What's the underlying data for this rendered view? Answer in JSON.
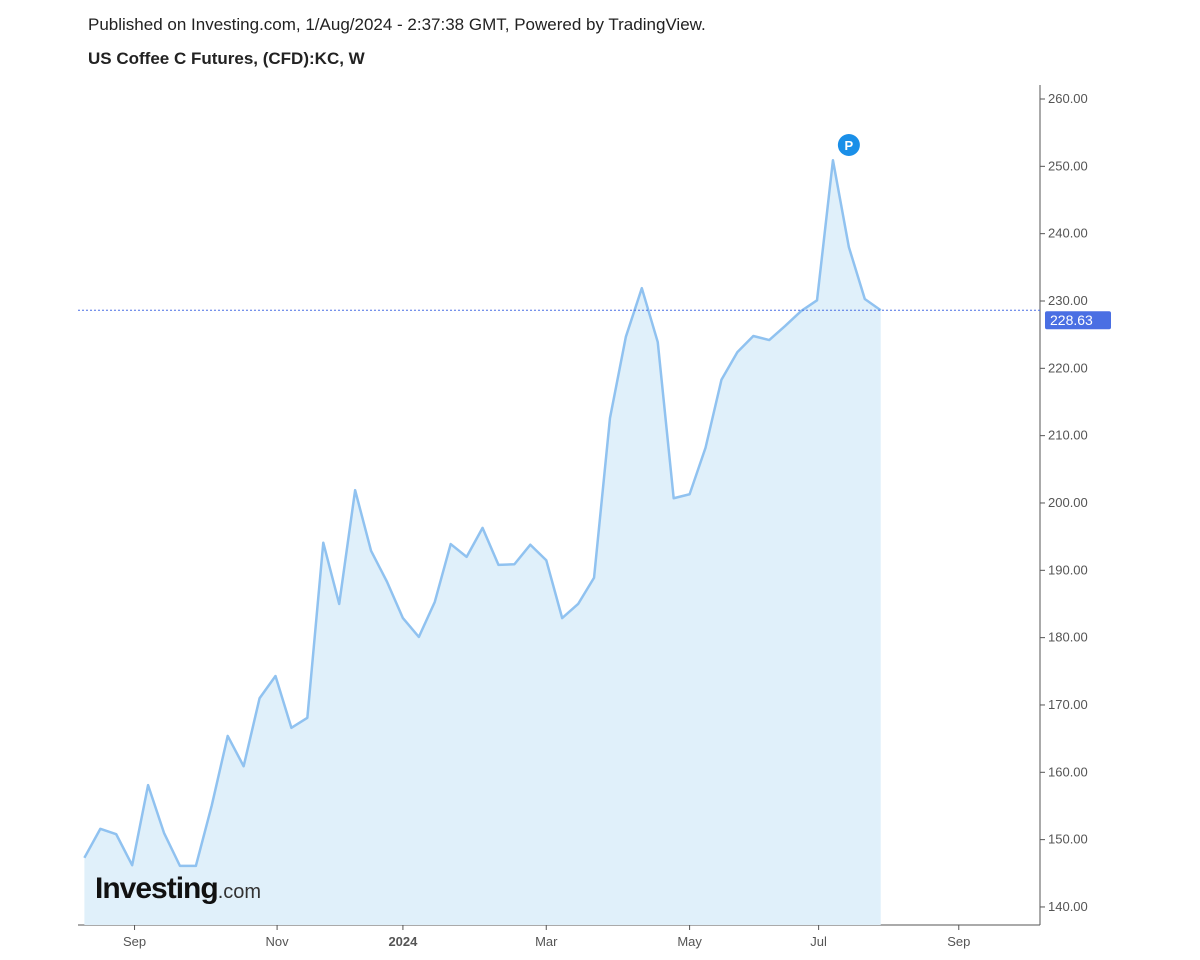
{
  "header": {
    "published": "Published on Investing.com, 1/Aug/2024 - 2:37:38 GMT, Powered by TradingView.",
    "title": "US Coffee C Futures, (CFD):KC, W"
  },
  "logo": {
    "main": "Investing",
    "suffix": ".com"
  },
  "chart_data": {
    "type": "area",
    "title": "US Coffee C Futures, (CFD):KC, W",
    "xlabel": "",
    "ylabel": "",
    "x_unit": "week index",
    "values": [
      147.3,
      151.6,
      150.8,
      146.2,
      158.1,
      151.0,
      146.1,
      146.1,
      155.1,
      165.4,
      160.9,
      171.0,
      174.3,
      166.6,
      168.1,
      194.1,
      185.0,
      201.9,
      192.9,
      188.3,
      182.9,
      180.1,
      185.3,
      193.9,
      192.0,
      196.3,
      190.8,
      190.9,
      193.8,
      191.5,
      182.9,
      185.0,
      188.9,
      212.6,
      224.7,
      231.9,
      223.9,
      200.7,
      201.3,
      208.2,
      218.3,
      222.4,
      224.8,
      224.2,
      226.3,
      228.5,
      230.1,
      250.9,
      238.0,
      230.3,
      228.63
    ],
    "ylim": [
      137.5,
      262
    ],
    "xlim": [
      -0.4,
      60
    ],
    "y_ticks": [
      "140.00",
      "150.00",
      "160.00",
      "170.00",
      "180.00",
      "190.00",
      "200.00",
      "210.00",
      "220.00",
      "230.00",
      "240.00",
      "250.00",
      "260.00"
    ],
    "x_ticks": [
      {
        "label": "Sep",
        "pos": 3.15,
        "bold": false
      },
      {
        "label": "Nov",
        "pos": 12.1,
        "bold": false
      },
      {
        "label": "2024",
        "pos": 20.0,
        "bold": true
      },
      {
        "label": "Mar",
        "pos": 29.0,
        "bold": false
      },
      {
        "label": "May",
        "pos": 38.0,
        "bold": false
      },
      {
        "label": "Jul",
        "pos": 46.1,
        "bold": false
      },
      {
        "label": "Sep",
        "pos": 54.9,
        "bold": false
      }
    ],
    "last_price": {
      "value": 228.63,
      "label": "228.63"
    },
    "marker": {
      "label": "P",
      "index": 48
    },
    "colors": {
      "line": "#90c2f0",
      "fill": "#e0f0fa",
      "price": "#4a6fe3",
      "marker": "#1a8fe8"
    }
  }
}
